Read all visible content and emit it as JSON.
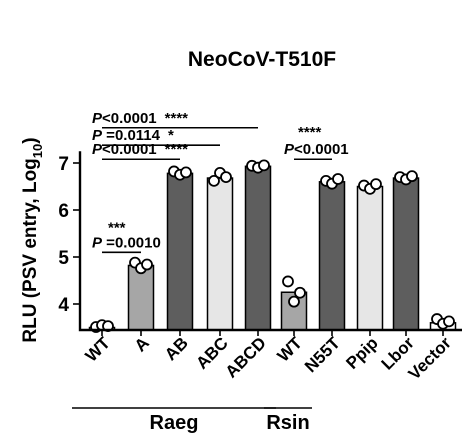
{
  "chart_data": {
    "type": "bar",
    "title": "NeoCoV-T510F",
    "ylabel_main": "RLU (PSV entry, Log",
    "ylabel_sub": "10",
    "ylabel_close": ")",
    "ylim": [
      3.5,
      7.25
    ],
    "yticks": [
      4,
      5,
      6,
      7
    ],
    "categories": [
      "WT",
      "A",
      "AB",
      "ABC",
      "ABCD",
      "WT",
      "N55T",
      "Ppip",
      "Lbor",
      "Vector"
    ],
    "values": [
      3.5,
      4.82,
      6.78,
      6.68,
      6.93,
      4.25,
      6.6,
      6.5,
      6.68,
      3.6
    ],
    "bar_colors": [
      "#ffffff",
      "#a6a6a6",
      "#5e5e5e",
      "#e6e6e6",
      "#5e5e5e",
      "#a6a6a6",
      "#5e5e5e",
      "#e6e6e6",
      "#5e5e5e",
      "#ffffff"
    ],
    "points": [
      [
        3.51,
        3.55,
        3.53
      ],
      [
        4.88,
        4.76,
        4.84
      ],
      [
        6.82,
        6.75,
        6.8
      ],
      [
        6.62,
        6.79,
        6.7
      ],
      [
        6.94,
        6.9,
        6.95
      ],
      [
        4.48,
        4.05,
        4.24
      ],
      [
        6.62,
        6.56,
        6.66
      ],
      [
        6.52,
        6.45,
        6.55
      ],
      [
        6.7,
        6.65,
        6.72
      ],
      [
        3.68,
        3.58,
        3.63
      ]
    ],
    "groups": [
      {
        "label": "Raeg",
        "from": 0,
        "to": 4
      },
      {
        "label": "Rsin",
        "from": 5,
        "to": 5
      }
    ],
    "comparisons": [
      {
        "p_prefix": "P",
        "p_text": "<0.0001",
        "stars": "****",
        "from": 0,
        "to": 4,
        "y": 7.75
      },
      {
        "p_prefix": "P",
        "p_text": " =0.0114",
        "stars": "*",
        "from": 0,
        "to": 3,
        "y": 7.38
      },
      {
        "p_prefix": "P",
        "p_text": "<0.0001",
        "stars": "****",
        "from": 0,
        "to": 2,
        "y": 7.08
      },
      {
        "p_prefix": "P",
        "p_text": " =0.0010",
        "stars": "***",
        "from": 0,
        "to": 1,
        "y": 5.1
      },
      {
        "p_prefix": "P",
        "p_text": "<0.0001",
        "stars": "****",
        "from": 5,
        "to": 6,
        "y": 7.08
      }
    ]
  }
}
